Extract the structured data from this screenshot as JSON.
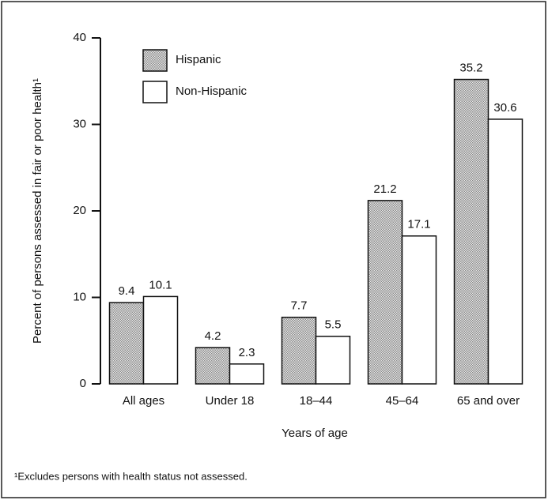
{
  "chart_data": {
    "type": "bar",
    "ylabel": "Percent of persons assessed in fair or poor health¹",
    "xlabel": "Years of age",
    "footnote": "¹Excludes persons with health status not assessed.",
    "categories": [
      "All ages",
      "Under 18",
      "18–44",
      "45–64",
      "65 and over"
    ],
    "series": [
      {
        "name": "Hispanic",
        "color": "#8a8a8a",
        "pattern": "stipple",
        "values": [
          9.4,
          4.2,
          7.7,
          21.2,
          35.2
        ]
      },
      {
        "name": "Non-Hispanic",
        "color": "#ffffff",
        "values": [
          10.1,
          2.3,
          5.5,
          17.1,
          30.6
        ]
      }
    ],
    "ylim": [
      0,
      40
    ],
    "yticks": [
      0,
      10,
      20,
      30,
      40
    ]
  }
}
